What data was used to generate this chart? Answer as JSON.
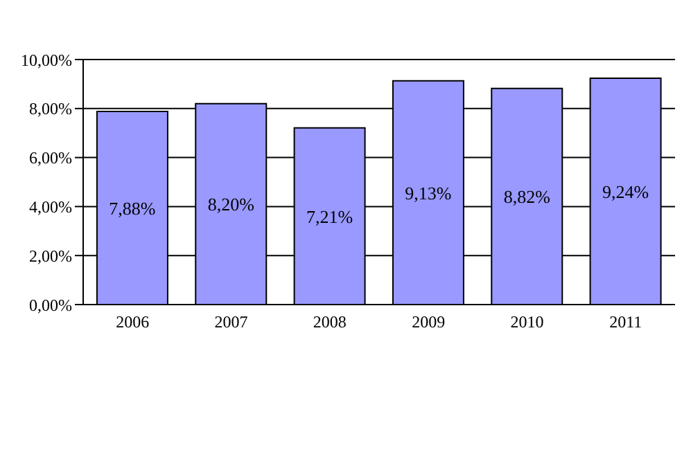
{
  "chart_data": {
    "type": "bar",
    "categories": [
      "2006",
      "2007",
      "2008",
      "2009",
      "2010",
      "2011"
    ],
    "values": [
      7.88,
      8.2,
      7.21,
      9.13,
      8.82,
      9.24
    ],
    "value_labels": [
      "7,88%",
      "8,20%",
      "7,21%",
      "9,13%",
      "8,82%",
      "9,24%"
    ],
    "color": "#9999ff",
    "ylim": [
      0,
      10
    ],
    "yticks": [
      {
        "value": 0,
        "label": "0,00%"
      },
      {
        "value": 2,
        "label": "2,00%"
      },
      {
        "value": 4,
        "label": "4,00%"
      },
      {
        "value": 6,
        "label": "6,00%"
      },
      {
        "value": 8,
        "label": "8,00%"
      },
      {
        "value": 10,
        "label": "10,00%"
      }
    ],
    "grid": "y"
  }
}
